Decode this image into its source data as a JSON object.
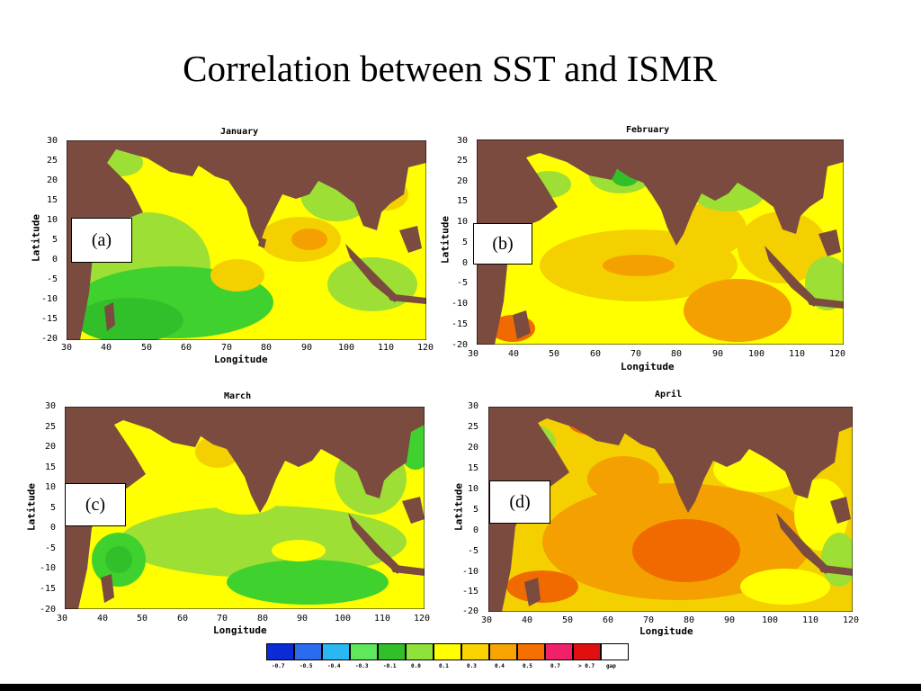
{
  "slide": {
    "title": "Correlation between SST and ISMR"
  },
  "palette": {
    "land": "#7b4b40",
    "pos_0_1": "#ffff00",
    "pos_0_3": "#f5d000",
    "pos_0_4": "#f4a000",
    "pos_0_5": "#f06a00",
    "neg_0_1": "#9ddf35",
    "neg_0_3": "#3fd12e"
  },
  "axes": {
    "x_ticks": [
      "30",
      "40",
      "50",
      "60",
      "70",
      "80",
      "90",
      "100",
      "110",
      "120"
    ],
    "y_ticks": [
      "30",
      "25",
      "20",
      "15",
      "10",
      "5",
      "0",
      "-5",
      "-10",
      "-15",
      "-20"
    ],
    "xlabel": "Longitude",
    "ylabel": "Latitude",
    "xlim": [
      30,
      120
    ],
    "ylim": [
      -20,
      30
    ]
  },
  "panels": [
    {
      "id": "a",
      "month": "January",
      "label": "(a)",
      "dominant": "mixed yellow/green"
    },
    {
      "id": "b",
      "month": "February",
      "label": "(b)",
      "dominant": "yellow/orange"
    },
    {
      "id": "c",
      "month": "March",
      "label": "(c)",
      "dominant": "yellow/green"
    },
    {
      "id": "d",
      "month": "April",
      "label": "(d)",
      "dominant": "orange"
    }
  ],
  "colorbar": {
    "colors": [
      "#0a2bd6",
      "#2a6bf0",
      "#29b8f2",
      "#5fe85a",
      "#32c02a",
      "#8fe23a",
      "#ffff00",
      "#f9d400",
      "#f8a400",
      "#f57000",
      "#f0206a",
      "#e01010",
      "#ffffff"
    ],
    "labels": [
      "-0.7",
      "-0.5",
      "-0.4",
      "-0.3",
      "-0.1",
      "0.0",
      "0.1",
      "0.3",
      "0.4",
      "0.5",
      "0.7",
      "> 0.7",
      "gap"
    ]
  }
}
